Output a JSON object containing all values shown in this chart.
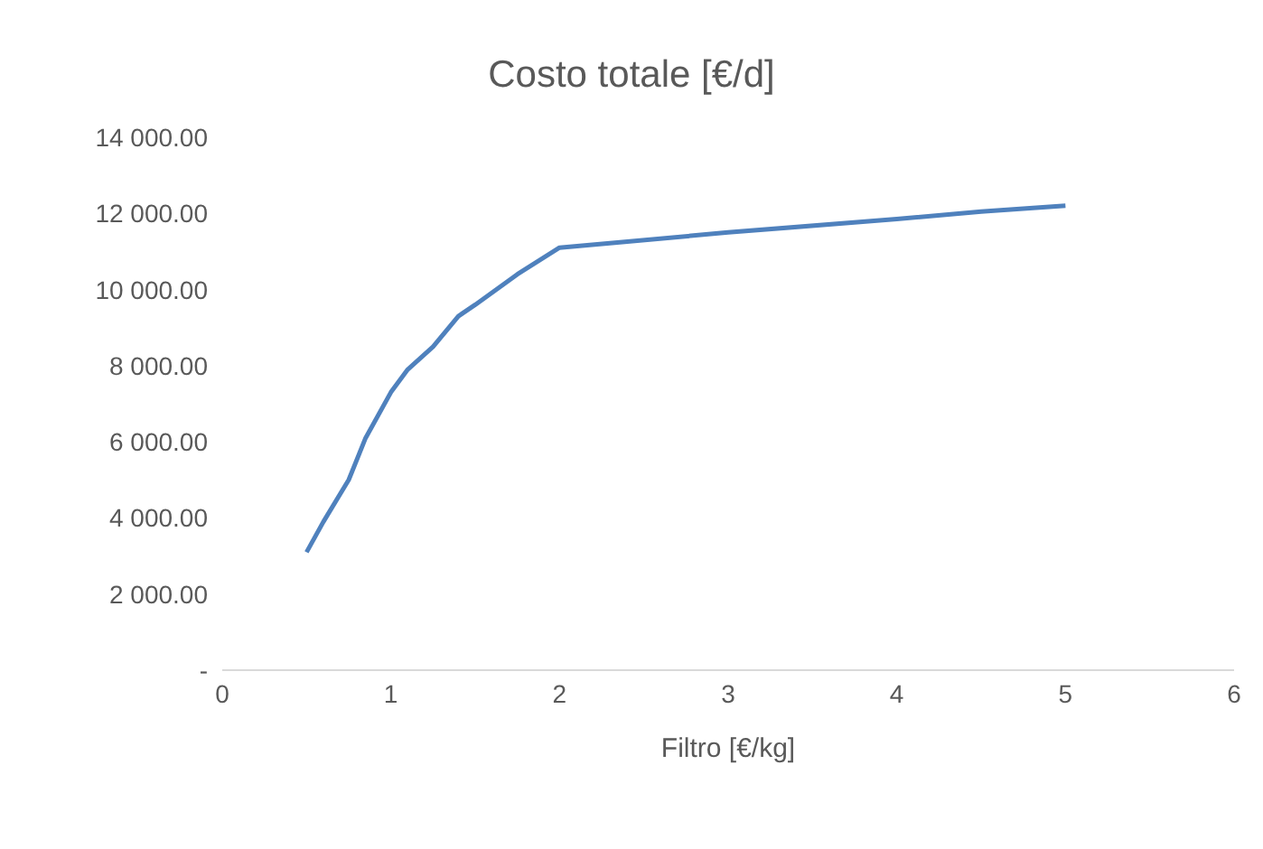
{
  "chart_data": {
    "type": "line",
    "title": "Costo totale [€/d]",
    "xlabel": "Filtro [€/kg]",
    "x": [
      0.5,
      0.6,
      0.75,
      0.85,
      1.0,
      1.1,
      1.25,
      1.4,
      1.5,
      1.75,
      2.0,
      3.0,
      4.0,
      4.5,
      5.0
    ],
    "series": [
      {
        "color": "#4f81bd",
        "values": [
          3100,
          3900,
          5000,
          6100,
          7300,
          7900,
          8500,
          9300,
          9600,
          10400,
          11100,
          11500,
          11850,
          12050,
          12200
        ]
      }
    ],
    "xlim": [
      0,
      6
    ],
    "xticks": [
      0,
      1,
      2,
      3,
      4,
      5,
      6
    ],
    "ylim": [
      0,
      14000
    ],
    "yticks": [
      {
        "value": 0,
        "label": "-"
      },
      {
        "value": 2000,
        "label": "2 000.00"
      },
      {
        "value": 4000,
        "label": "4 000.00"
      },
      {
        "value": 6000,
        "label": "6 000.00"
      },
      {
        "value": 8000,
        "label": "8 000.00"
      },
      {
        "value": 10000,
        "label": "10 000.00"
      },
      {
        "value": 12000,
        "label": "12 000.00"
      },
      {
        "value": 14000,
        "label": "14 000.00"
      }
    ],
    "grid": false,
    "legend": false
  }
}
